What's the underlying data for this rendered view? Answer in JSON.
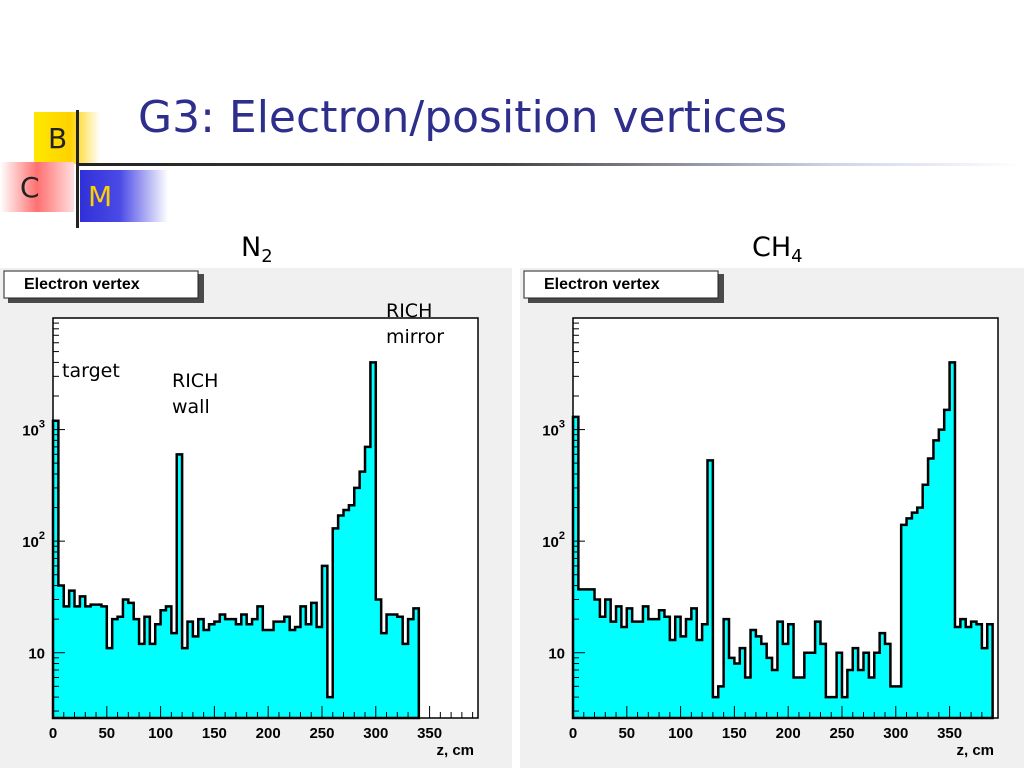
{
  "slide": {
    "title": "G3: Electron/position vertices",
    "logo": {
      "b": "B",
      "c": "C",
      "m": "M"
    },
    "annotations": {
      "target": "target",
      "wall": [
        "RICH",
        "wall"
      ],
      "mirror": [
        "RICH",
        "mirror"
      ]
    }
  },
  "colors": {
    "fill": "#00ffff",
    "title": "#2e2e8c",
    "panel_bg": "#f0f0f0"
  },
  "chart_data": [
    {
      "type": "area",
      "gas": {
        "base": "N",
        "sub": "2"
      },
      "title": "Electron vertex",
      "xlabel": "z, cm",
      "ylabel": "",
      "yscale": "log",
      "xlim": [
        0,
        395
      ],
      "xticks": [
        0,
        50,
        100,
        150,
        200,
        250,
        300,
        350
      ],
      "yticks": [
        {
          "v": 10,
          "label": "10",
          "exp": ""
        },
        {
          "v": 100,
          "label": "10",
          "exp": "2"
        },
        {
          "v": 1000,
          "label": "10",
          "exp": "3"
        }
      ],
      "bin_width": 5,
      "values": [
        1200,
        40,
        26,
        36,
        26,
        32,
        26,
        27,
        27,
        26,
        11,
        20,
        21,
        30,
        28,
        20,
        12,
        21,
        12,
        18,
        24,
        26,
        15,
        600,
        11,
        19,
        14,
        20,
        16,
        18,
        19,
        22,
        20,
        20,
        18,
        22,
        18,
        20,
        26,
        16,
        16,
        19,
        19,
        21,
        16,
        17,
        26,
        18,
        28,
        17,
        60,
        4,
        130,
        170,
        190,
        210,
        300,
        420,
        700,
        4000,
        30,
        15,
        22,
        22,
        21,
        12,
        20,
        25
      ]
    },
    {
      "type": "area",
      "gas": {
        "base": "CH",
        "sub": "4"
      },
      "title": "Electron vertex",
      "xlabel": "z, cm",
      "ylabel": "",
      "yscale": "log",
      "xlim": [
        0,
        395
      ],
      "xticks": [
        0,
        50,
        100,
        150,
        200,
        250,
        300,
        350
      ],
      "yticks": [
        {
          "v": 10,
          "label": "10",
          "exp": ""
        },
        {
          "v": 100,
          "label": "10",
          "exp": "2"
        },
        {
          "v": 1000,
          "label": "10",
          "exp": "3"
        }
      ],
      "bin_width": 5,
      "values": [
        1300,
        37,
        37,
        37,
        30,
        21,
        30,
        19,
        26,
        17,
        25,
        19,
        19,
        26,
        20,
        20,
        24,
        21,
        13,
        21,
        14,
        20,
        25,
        13,
        18,
        530,
        4,
        5,
        20,
        9,
        8,
        11,
        6,
        16,
        14,
        12,
        9,
        7,
        19,
        12,
        18,
        6,
        6,
        10,
        10,
        19,
        12,
        4,
        4,
        10,
        4,
        7,
        11,
        7,
        10,
        6,
        10,
        15,
        12,
        5,
        5,
        140,
        160,
        180,
        200,
        320,
        550,
        800,
        1000,
        1500,
        4000,
        17,
        20,
        17,
        19,
        18,
        11,
        18
      ]
    }
  ]
}
